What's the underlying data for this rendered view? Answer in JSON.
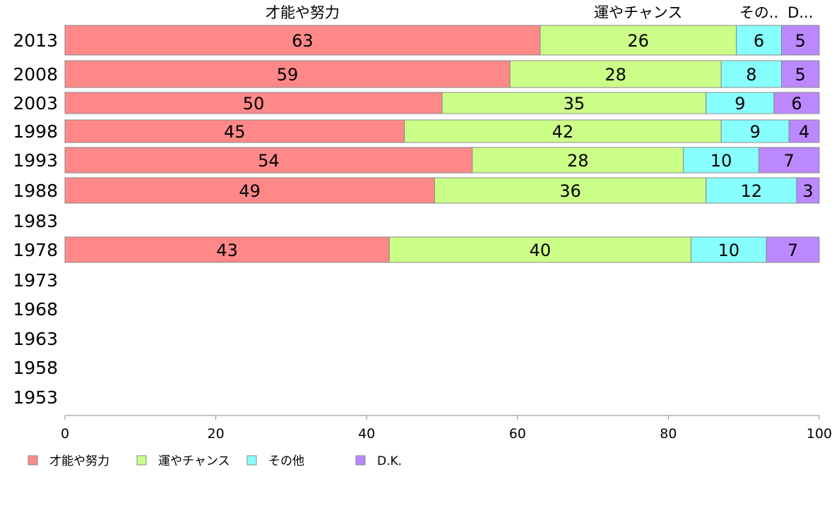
{
  "chart_data": {
    "type": "bar",
    "orientation": "horizontal",
    "stacked": true,
    "categories": [
      "2013",
      "2008",
      "2003",
      "1998",
      "1993",
      "1988",
      "1983",
      "1978",
      "1973",
      "1968",
      "1963",
      "1958",
      "1953"
    ],
    "series": [
      {
        "name": "才能や努力",
        "header_label": "才能や努力",
        "color": "#FF8888",
        "values": [
          63,
          59,
          50,
          45,
          54,
          49,
          null,
          43,
          null,
          null,
          null,
          null,
          null
        ]
      },
      {
        "name": "運やチャンス",
        "header_label": "運やチャンス",
        "color": "#CCFF88",
        "values": [
          26,
          28,
          35,
          42,
          28,
          36,
          null,
          40,
          null,
          null,
          null,
          null,
          null
        ]
      },
      {
        "name": "その他",
        "header_label": "その..",
        "color": "#88FFFF",
        "values": [
          6,
          8,
          9,
          9,
          10,
          12,
          null,
          10,
          null,
          null,
          null,
          null,
          null
        ]
      },
      {
        "name": "D.K.",
        "header_label": "D...",
        "color": "#BB88FF",
        "values": [
          5,
          5,
          6,
          4,
          7,
          3,
          null,
          7,
          null,
          null,
          null,
          null,
          null
        ]
      }
    ],
    "bar_data_labels": [
      [
        "63",
        "26",
        "6",
        "5"
      ],
      [
        "59",
        "28",
        "8",
        "5"
      ],
      [
        "50",
        "35",
        "9",
        "6"
      ],
      [
        "45",
        "42",
        "9",
        "4"
      ],
      [
        "54",
        "28",
        "10",
        "7"
      ],
      [
        "49",
        "36",
        "12",
        "3"
      ],
      null,
      [
        "43",
        "40",
        "10",
        "7"
      ],
      null,
      null,
      null,
      null,
      null
    ],
    "xlim": [
      0,
      100
    ],
    "xticks": [
      0,
      20,
      40,
      60,
      80,
      100
    ],
    "xtick_labels": [
      "0",
      "20",
      "40",
      "60",
      "80",
      "100"
    ],
    "grid": false,
    "legend_position": "bottom-left",
    "title": "",
    "xlabel": "",
    "ylabel": ""
  }
}
